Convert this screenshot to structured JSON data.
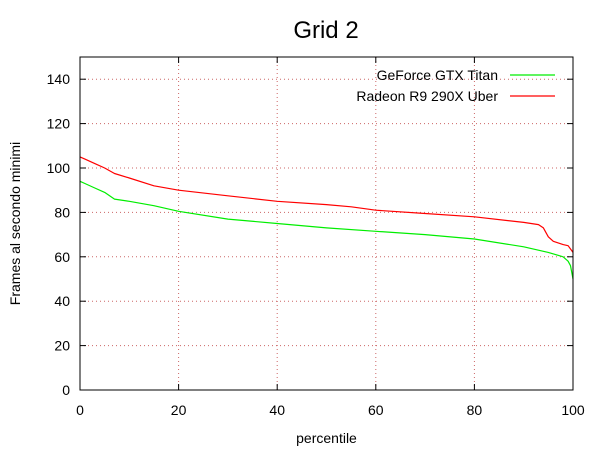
{
  "chart_data": {
    "type": "line",
    "title": "Grid 2",
    "xlabel": "percentile",
    "ylabel": "Frames al secondo minimi",
    "xlim": [
      0,
      100
    ],
    "ylim": [
      0,
      150
    ],
    "xticks": [
      0,
      20,
      40,
      60,
      80,
      100
    ],
    "yticks": [
      0,
      20,
      40,
      60,
      80,
      100,
      120,
      140
    ],
    "grid": true,
    "legend_position": "top-right",
    "series": [
      {
        "name": "GeForce GTX Titan",
        "color": "#00ee00",
        "x": [
          0,
          1,
          3,
          5,
          7,
          10,
          15,
          20,
          30,
          40,
          50,
          60,
          70,
          80,
          90,
          95,
          98,
          99,
          99.5,
          100
        ],
        "y": [
          94,
          93,
          91,
          89,
          86,
          85,
          83,
          80.5,
          77,
          75,
          73,
          71.5,
          70,
          68,
          64.5,
          62,
          60,
          58,
          56,
          50
        ]
      },
      {
        "name": "Radeon R9 290X Uber",
        "color": "#ff0000",
        "x": [
          0,
          1,
          3,
          5,
          7,
          10,
          15,
          20,
          30,
          40,
          50,
          55,
          60,
          70,
          80,
          90,
          93,
          94,
          95,
          96,
          98,
          99,
          100
        ],
        "y": [
          105,
          104,
          102,
          100,
          97.5,
          95.5,
          92,
          90,
          87.5,
          85,
          83.5,
          82.5,
          81,
          79.5,
          78,
          75.5,
          74.5,
          73,
          69,
          67,
          65.5,
          65,
          62
        ]
      }
    ]
  }
}
